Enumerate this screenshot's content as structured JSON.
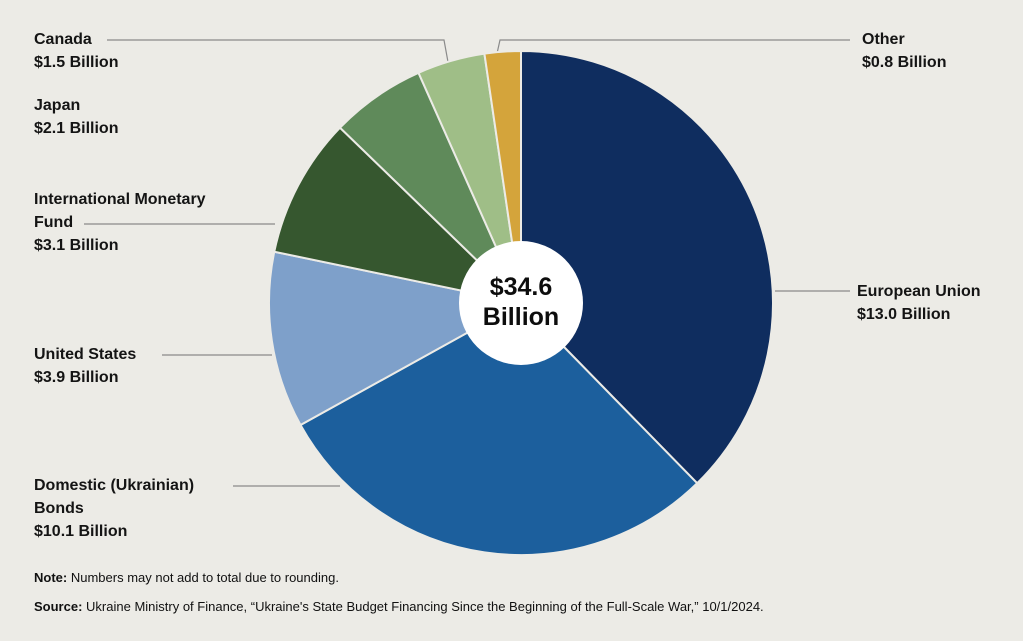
{
  "chart_data": {
    "type": "pie",
    "total_label": [
      "$34.6",
      "Billion"
    ],
    "unit": "Billion",
    "slices": [
      {
        "name": "European Union",
        "value": 13.0,
        "value_label": "$13.0 Billion",
        "color": "#0f2d5f"
      },
      {
        "name": "Domestic (Ukrainian) Bonds",
        "value": 10.1,
        "value_label": "$10.1 Billion",
        "color": "#1c5f9d"
      },
      {
        "name": "United States",
        "value": 3.9,
        "value_label": "$3.9 Billion",
        "color": "#7ea0ca"
      },
      {
        "name": "International Monetary Fund",
        "value": 3.1,
        "value_label": "$3.1 Billion",
        "color": "#36572f"
      },
      {
        "name": "Japan",
        "value": 2.1,
        "value_label": "$2.1 Billion",
        "color": "#5f8a5a"
      },
      {
        "name": "Canada",
        "value": 1.5,
        "value_label": "$1.5 Billion",
        "color": "#9fbe87"
      },
      {
        "name": "Other",
        "value": 0.8,
        "value_label": "$0.8 Billion",
        "color": "#d4a43b"
      }
    ]
  },
  "labels": {
    "eu": {
      "name": "European Union",
      "value": "$13.0 Billion"
    },
    "domestic": {
      "name1": "Domestic (Ukrainian)",
      "name2": "Bonds",
      "value": "$10.1 Billion"
    },
    "us": {
      "name": "United States",
      "value": "$3.9 Billion"
    },
    "imf": {
      "name1": "International Monetary",
      "name2": "Fund",
      "value": "$3.1 Billion"
    },
    "japan": {
      "name": "Japan",
      "value": "$2.1 Billion"
    },
    "canada": {
      "name": "Canada",
      "value": "$1.5 Billion"
    },
    "other": {
      "name": "Other",
      "value": "$0.8 Billion"
    }
  },
  "center": {
    "line1": "$34.6",
    "line2": "Billion"
  },
  "note": {
    "label": "Note:",
    "text": "Numbers may not add to total due to rounding."
  },
  "source": {
    "label": "Source:",
    "text": "Ukraine Ministry of Finance, “Ukraine's State Budget Financing Since the Beginning of the Full-Scale War,” 10/1/2024."
  }
}
